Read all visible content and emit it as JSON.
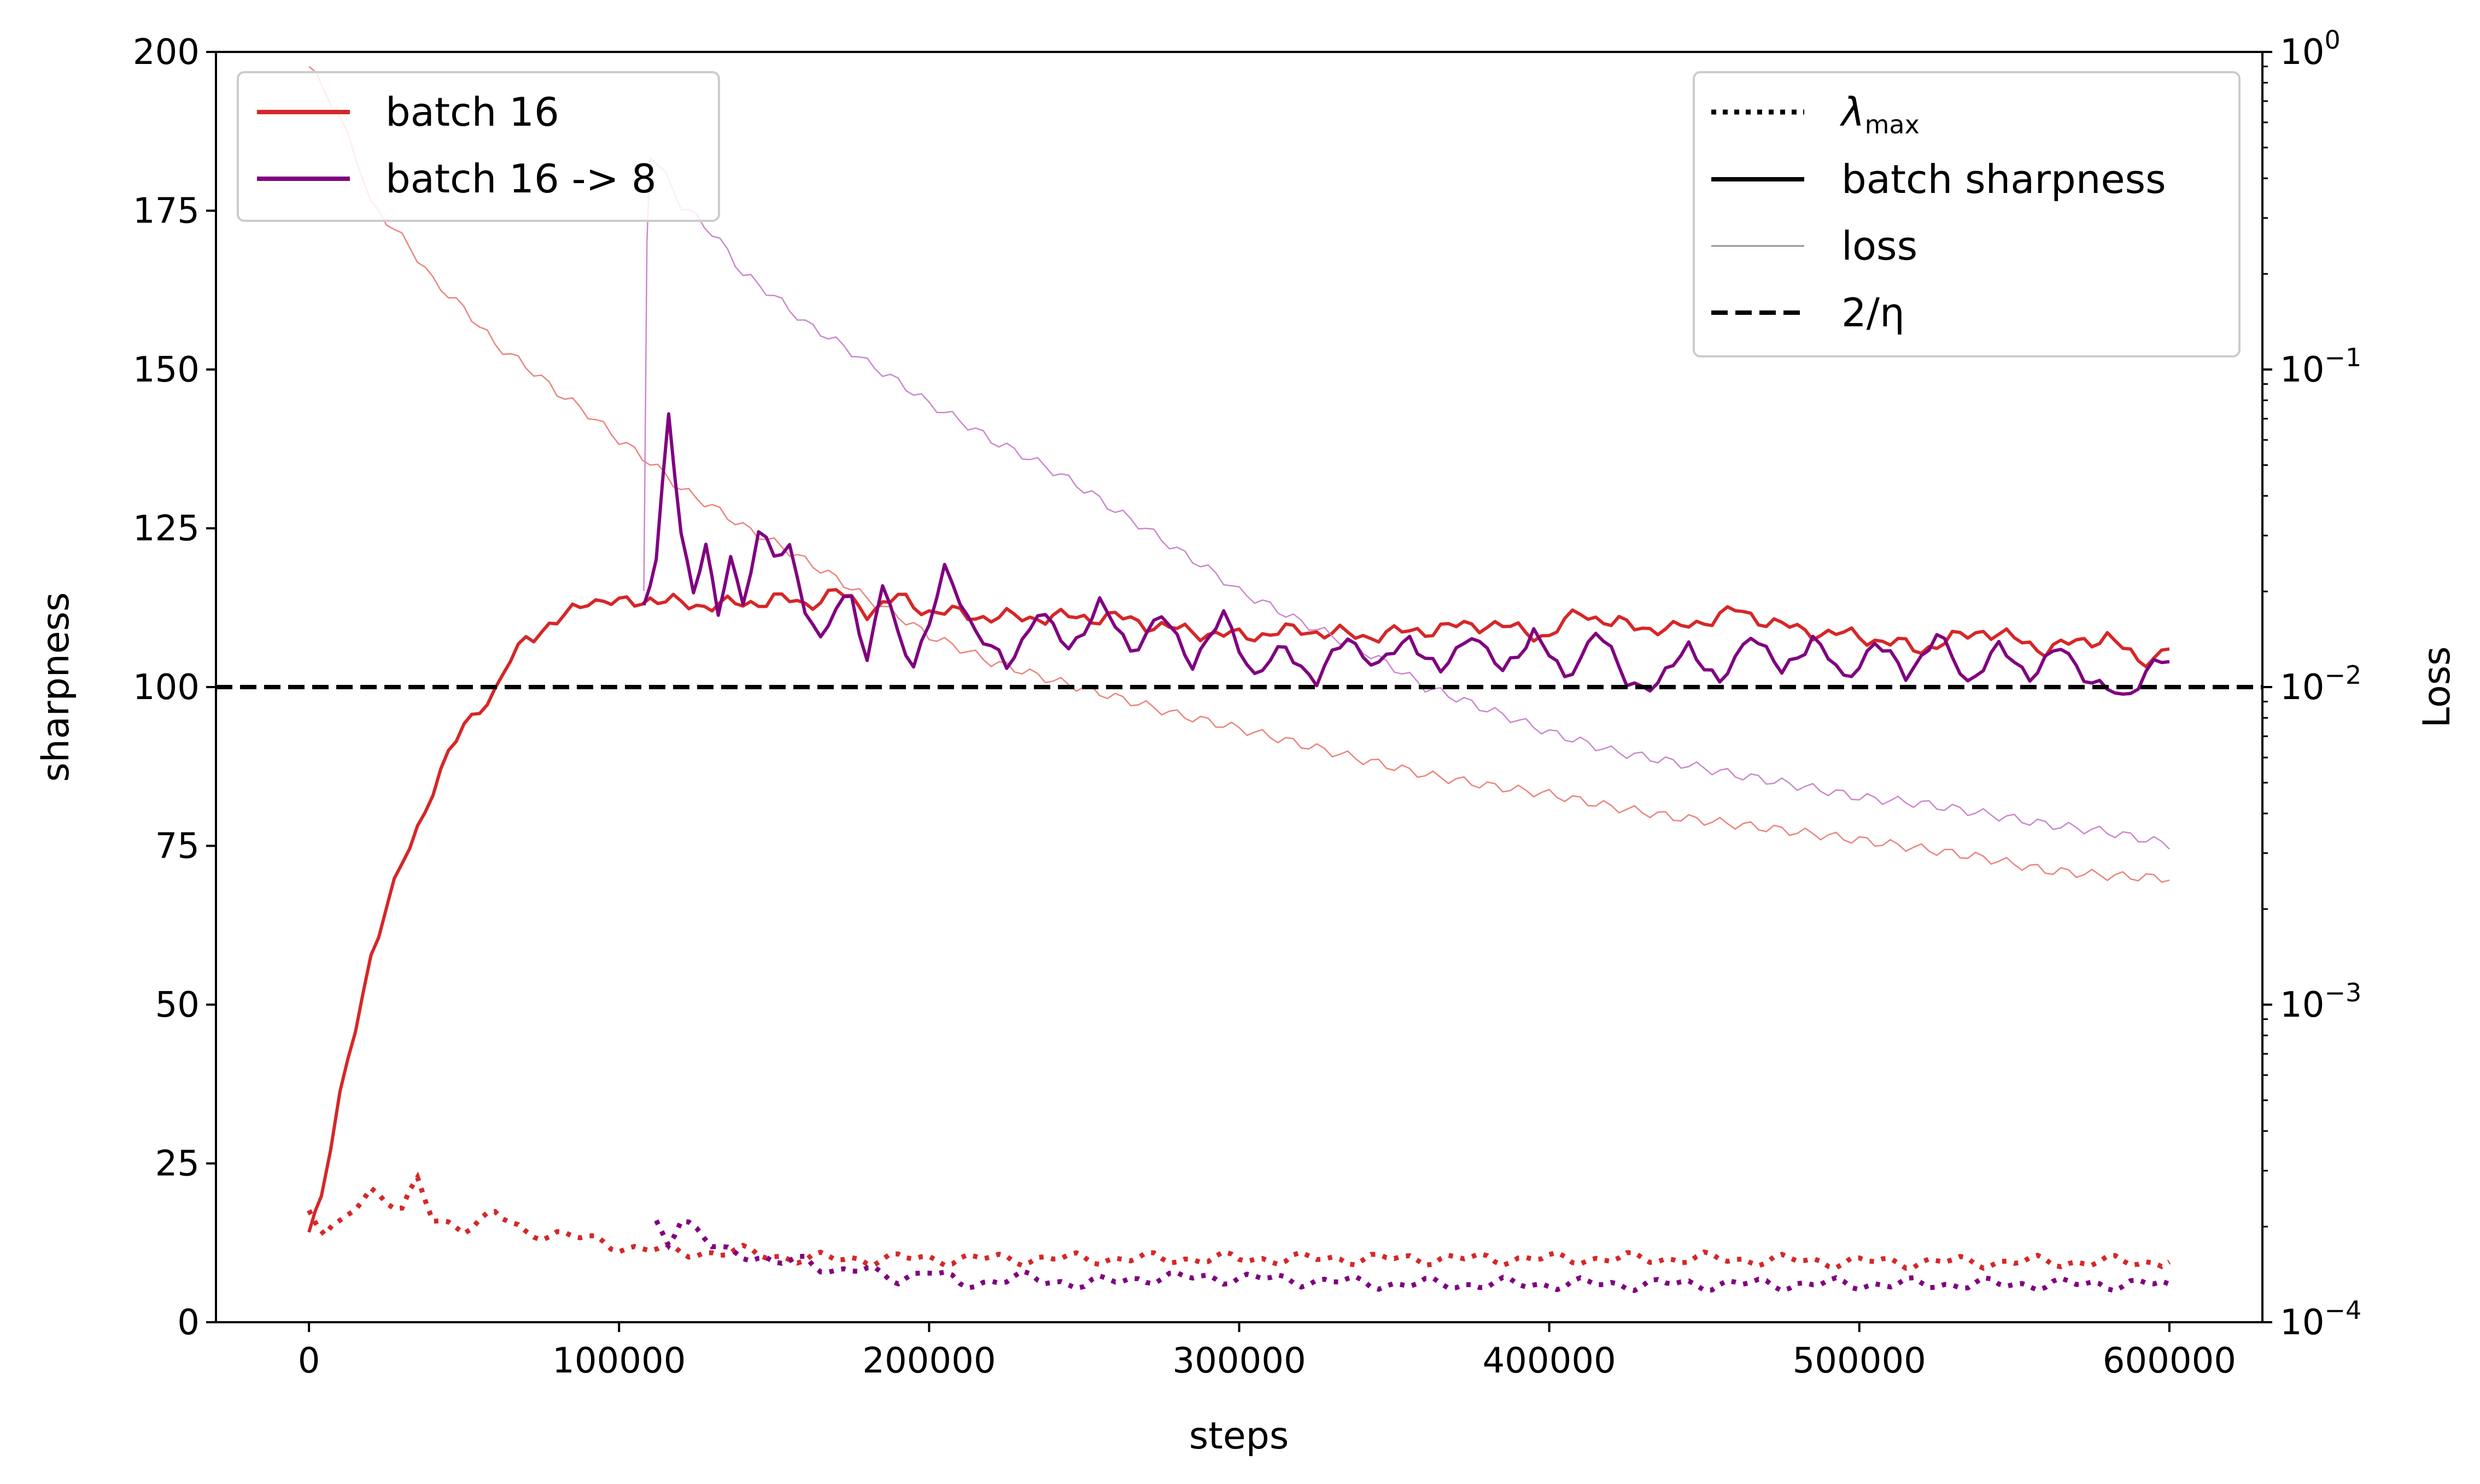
{
  "chart_data": {
    "type": "line",
    "xlabel": "steps",
    "ylabel": "sharpness",
    "y2label": "Loss",
    "xlim": [
      -30000,
      630000
    ],
    "ylim": [
      0,
      200
    ],
    "y2lim": [
      0.0001,
      1
    ],
    "y2scale": "log",
    "x_ticks": [
      {
        "value": 0,
        "label": "0"
      },
      {
        "value": 100000,
        "label": "100000"
      },
      {
        "value": 200000,
        "label": "200000"
      },
      {
        "value": 300000,
        "label": "300000"
      },
      {
        "value": 400000,
        "label": "400000"
      },
      {
        "value": 500000,
        "label": "500000"
      },
      {
        "value": 600000,
        "label": "600000"
      }
    ],
    "y_ticks": [
      {
        "value": 0,
        "label": "0"
      },
      {
        "value": 25,
        "label": "25"
      },
      {
        "value": 50,
        "label": "50"
      },
      {
        "value": 75,
        "label": "75"
      },
      {
        "value": 100,
        "label": "100"
      },
      {
        "value": 125,
        "label": "125"
      },
      {
        "value": 150,
        "label": "150"
      },
      {
        "value": 175,
        "label": "175"
      },
      {
        "value": 200,
        "label": "200"
      }
    ],
    "y2_ticks": [
      {
        "value": 1,
        "base": "10",
        "exp": "0"
      },
      {
        "value": 0.1,
        "base": "10",
        "exp": "−1"
      },
      {
        "value": 0.01,
        "base": "10",
        "exp": "−2"
      },
      {
        "value": 0.001,
        "base": "10",
        "exp": "−3"
      },
      {
        "value": 0.0001,
        "base": "10",
        "exp": "−4"
      }
    ],
    "reference_line": {
      "name": "2/η",
      "y": 100,
      "style": "dashed",
      "color": "#000000"
    },
    "series": [
      {
        "name": "batch 16",
        "color": "#d62728",
        "loss_color": "#e8756f",
        "batch_sharpness": [
          [
            0,
            15
          ],
          [
            4000,
            20
          ],
          [
            10000,
            35
          ],
          [
            20000,
            58
          ],
          [
            30000,
            72
          ],
          [
            40000,
            84
          ],
          [
            50000,
            94
          ],
          [
            55000,
            97
          ],
          [
            60000,
            99
          ],
          [
            65000,
            104
          ],
          [
            70000,
            108
          ],
          [
            80000,
            110
          ],
          [
            90000,
            114
          ],
          [
            100000,
            113
          ],
          [
            110000,
            114
          ],
          [
            120000,
            113
          ],
          [
            130000,
            113
          ],
          [
            140000,
            113
          ],
          [
            150000,
            114
          ],
          [
            160000,
            113
          ],
          [
            170000,
            115
          ],
          [
            180000,
            112
          ],
          [
            190000,
            114
          ],
          [
            200000,
            112
          ],
          [
            220000,
            111
          ],
          [
            240000,
            111
          ],
          [
            260000,
            111
          ],
          [
            280000,
            109
          ],
          [
            300000,
            108
          ],
          [
            320000,
            109
          ],
          [
            340000,
            108
          ],
          [
            360000,
            109
          ],
          [
            380000,
            110
          ],
          [
            400000,
            108
          ],
          [
            410000,
            112
          ],
          [
            420000,
            110
          ],
          [
            440000,
            109
          ],
          [
            460000,
            112
          ],
          [
            480000,
            109
          ],
          [
            500000,
            108
          ],
          [
            520000,
            106
          ],
          [
            540000,
            109
          ],
          [
            560000,
            106
          ],
          [
            580000,
            108
          ],
          [
            590000,
            104
          ],
          [
            600000,
            106
          ]
        ],
        "lambda_max": [
          [
            0,
            18
          ],
          [
            5000,
            14
          ],
          [
            10000,
            15
          ],
          [
            20000,
            21
          ],
          [
            30000,
            18
          ],
          [
            35000,
            22
          ],
          [
            40000,
            16
          ],
          [
            50000,
            15
          ],
          [
            60000,
            17
          ],
          [
            70000,
            14
          ],
          [
            80000,
            14
          ],
          [
            90000,
            13
          ],
          [
            100000,
            12
          ],
          [
            120000,
            11
          ],
          [
            140000,
            11
          ],
          [
            160000,
            10
          ],
          [
            180000,
            10
          ],
          [
            200000,
            10
          ],
          [
            250000,
            10
          ],
          [
            300000,
            10
          ],
          [
            350000,
            10
          ],
          [
            400000,
            10
          ],
          [
            450000,
            10
          ],
          [
            500000,
            9.5
          ],
          [
            550000,
            9.5
          ],
          [
            600000,
            9.5
          ]
        ],
        "loss": [
          [
            0,
            0.9
          ],
          [
            20000,
            0.33
          ],
          [
            40000,
            0.19
          ],
          [
            60000,
            0.12
          ],
          [
            80000,
            0.085
          ],
          [
            100000,
            0.06
          ],
          [
            120000,
            0.042
          ],
          [
            140000,
            0.032
          ],
          [
            160000,
            0.025
          ],
          [
            180000,
            0.019
          ],
          [
            200000,
            0.0145
          ],
          [
            220000,
            0.012
          ],
          [
            240000,
            0.0105
          ],
          [
            260000,
            0.0093
          ],
          [
            280000,
            0.0082
          ],
          [
            300000,
            0.0074
          ],
          [
            320000,
            0.0066
          ],
          [
            340000,
            0.0059
          ],
          [
            360000,
            0.0053
          ],
          [
            380000,
            0.0049
          ],
          [
            400000,
            0.0046
          ],
          [
            420000,
            0.0042
          ],
          [
            440000,
            0.0039
          ],
          [
            460000,
            0.0037
          ],
          [
            480000,
            0.0035
          ],
          [
            500000,
            0.0033
          ],
          [
            520000,
            0.0031
          ],
          [
            540000,
            0.0029
          ],
          [
            560000,
            0.00265
          ],
          [
            580000,
            0.00255
          ],
          [
            600000,
            0.0025
          ]
        ]
      },
      {
        "name": "batch 16 -> 8",
        "color": "#800080",
        "loss_color": "#c77ac7",
        "batch_sharpness": [
          [
            108000,
            113
          ],
          [
            112000,
            120
          ],
          [
            116000,
            142
          ],
          [
            120000,
            125
          ],
          [
            124000,
            115
          ],
          [
            128000,
            123
          ],
          [
            132000,
            110
          ],
          [
            136000,
            121
          ],
          [
            140000,
            113
          ],
          [
            145000,
            125
          ],
          [
            150000,
            120
          ],
          [
            155000,
            122
          ],
          [
            160000,
            113
          ],
          [
            165000,
            107
          ],
          [
            170000,
            112
          ],
          [
            175000,
            115
          ],
          [
            180000,
            104
          ],
          [
            185000,
            116
          ],
          [
            190000,
            108
          ],
          [
            195000,
            104
          ],
          [
            200000,
            110
          ],
          [
            205000,
            118
          ],
          [
            210000,
            114
          ],
          [
            215000,
            109
          ],
          [
            225000,
            103
          ],
          [
            235000,
            112
          ],
          [
            245000,
            106
          ],
          [
            255000,
            113
          ],
          [
            265000,
            106
          ],
          [
            275000,
            111
          ],
          [
            285000,
            104
          ],
          [
            295000,
            111
          ],
          [
            305000,
            102
          ],
          [
            315000,
            106
          ],
          [
            325000,
            101
          ],
          [
            335000,
            108
          ],
          [
            345000,
            103
          ],
          [
            355000,
            108
          ],
          [
            365000,
            102
          ],
          [
            375000,
            109
          ],
          [
            385000,
            102
          ],
          [
            395000,
            109
          ],
          [
            405000,
            101
          ],
          [
            415000,
            109
          ],
          [
            425000,
            101
          ],
          [
            435000,
            100
          ],
          [
            445000,
            107
          ],
          [
            455000,
            100
          ],
          [
            465000,
            109
          ],
          [
            475000,
            102
          ],
          [
            485000,
            108
          ],
          [
            495000,
            101
          ],
          [
            505000,
            107
          ],
          [
            515000,
            102
          ],
          [
            525000,
            108
          ],
          [
            535000,
            101
          ],
          [
            545000,
            106
          ],
          [
            555000,
            102
          ],
          [
            565000,
            106
          ],
          [
            575000,
            101
          ],
          [
            585000,
            98
          ],
          [
            595000,
            104
          ],
          [
            600000,
            104
          ]
        ],
        "lambda_max": [
          [
            112000,
            16
          ],
          [
            116000,
            13
          ],
          [
            120000,
            16
          ],
          [
            125000,
            14
          ],
          [
            130000,
            12
          ],
          [
            140000,
            11
          ],
          [
            150000,
            9
          ],
          [
            160000,
            10
          ],
          [
            170000,
            8
          ],
          [
            180000,
            8
          ],
          [
            190000,
            7
          ],
          [
            200000,
            8
          ],
          [
            210000,
            6
          ],
          [
            230000,
            7
          ],
          [
            250000,
            6
          ],
          [
            270000,
            7
          ],
          [
            300000,
            7
          ],
          [
            350000,
            6
          ],
          [
            400000,
            6
          ],
          [
            450000,
            6
          ],
          [
            500000,
            6
          ],
          [
            550000,
            6
          ],
          [
            600000,
            6
          ]
        ],
        "loss": [
          [
            108000,
            0.0195
          ],
          [
            110000,
            0.48
          ],
          [
            120000,
            0.33
          ],
          [
            130000,
            0.27
          ],
          [
            140000,
            0.2
          ],
          [
            160000,
            0.14
          ],
          [
            180000,
            0.105
          ],
          [
            200000,
            0.078
          ],
          [
            220000,
            0.06
          ],
          [
            240000,
            0.048
          ],
          [
            260000,
            0.036
          ],
          [
            280000,
            0.027
          ],
          [
            300000,
            0.02
          ],
          [
            320000,
            0.016
          ],
          [
            340000,
            0.013
          ],
          [
            360000,
            0.01
          ],
          [
            380000,
            0.0085
          ],
          [
            400000,
            0.0072
          ],
          [
            420000,
            0.0063
          ],
          [
            440000,
            0.0058
          ],
          [
            460000,
            0.0053
          ],
          [
            480000,
            0.0049
          ],
          [
            500000,
            0.0045
          ],
          [
            520000,
            0.0043
          ],
          [
            540000,
            0.004
          ],
          [
            560000,
            0.0037
          ],
          [
            580000,
            0.0035
          ],
          [
            600000,
            0.0032
          ]
        ]
      }
    ],
    "legend_left": {
      "placement": "top-left",
      "entries": [
        {
          "label": "batch 16",
          "color": "#d62728"
        },
        {
          "label": "batch 16 -> 8",
          "color": "#800080"
        }
      ]
    },
    "legend_right": {
      "placement": "top-right",
      "entries": [
        {
          "label": "λ",
          "subscript": "max",
          "style": "dotted"
        },
        {
          "label": "batch sharpness",
          "style": "solid"
        },
        {
          "label": "loss",
          "style": "thin"
        },
        {
          "label": "2/η",
          "style": "dashed"
        }
      ]
    }
  }
}
